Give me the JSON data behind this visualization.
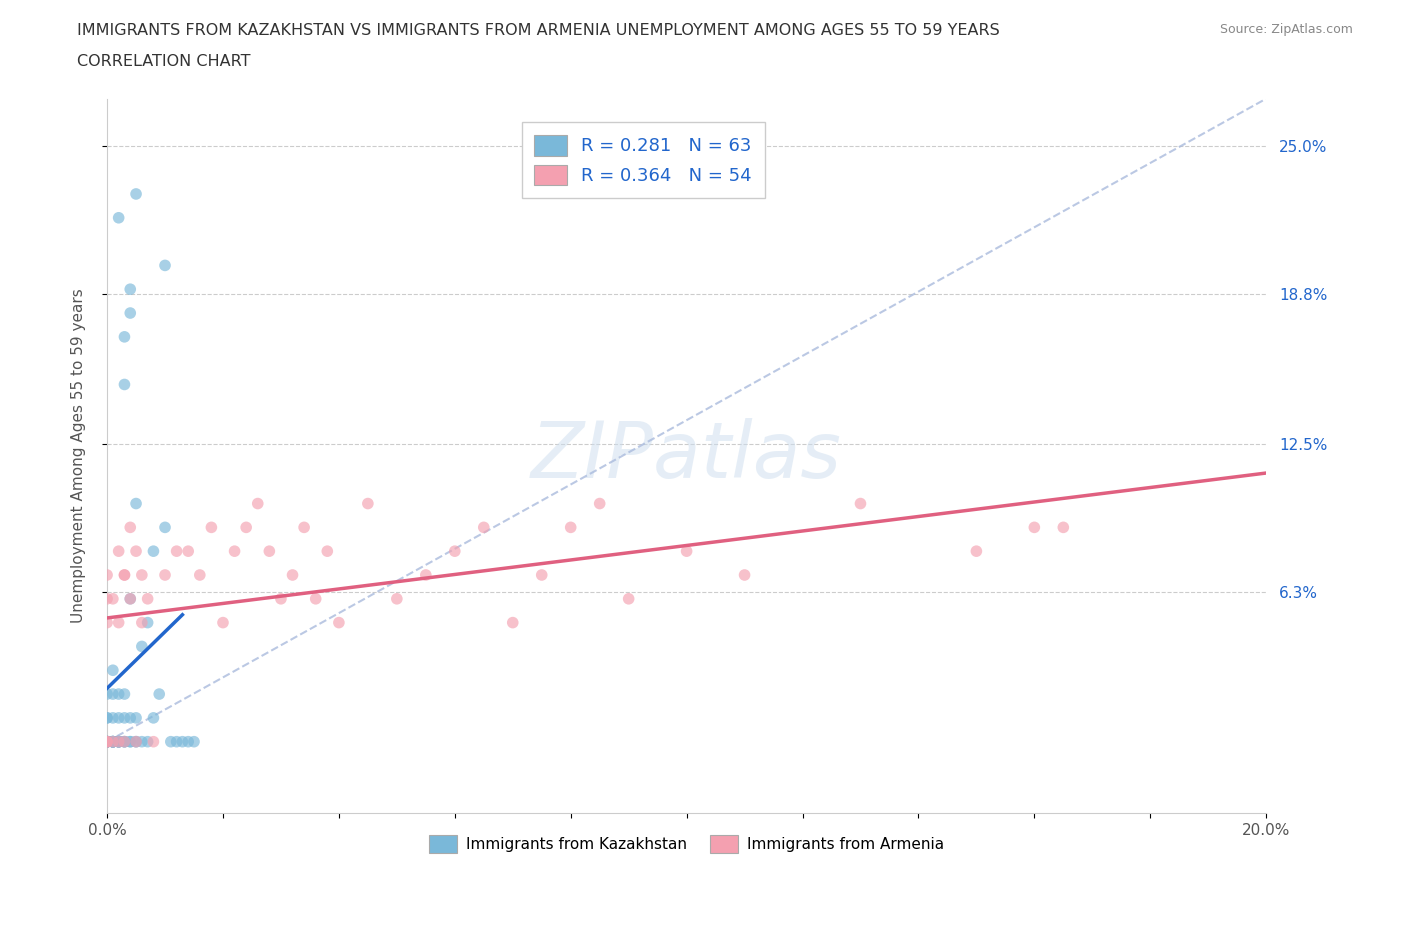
{
  "title_line1": "IMMIGRANTS FROM KAZAKHSTAN VS IMMIGRANTS FROM ARMENIA UNEMPLOYMENT AMONG AGES 55 TO 59 YEARS",
  "title_line2": "CORRELATION CHART",
  "source_text": "Source: ZipAtlas.com",
  "ylabel": "Unemployment Among Ages 55 to 59 years",
  "xlim": [
    0.0,
    0.2
  ],
  "ylim": [
    -0.03,
    0.27
  ],
  "xtick_positions": [
    0.0,
    0.02,
    0.04,
    0.06,
    0.08,
    0.1,
    0.12,
    0.14,
    0.16,
    0.18,
    0.2
  ],
  "xtick_labels": [
    "0.0%",
    "",
    "",
    "",
    "",
    "",
    "",
    "",
    "",
    "",
    "20.0%"
  ],
  "right_ytick_labels": [
    "6.3%",
    "12.5%",
    "18.8%",
    "25.0%"
  ],
  "right_ytick_vals": [
    0.063,
    0.125,
    0.188,
    0.25
  ],
  "kazakhstan_color": "#7ab8d9",
  "armenia_color": "#f4a0b0",
  "kazakhstan_line_color": "#2266cc",
  "armenia_line_color": "#e06080",
  "diag_color": "#aabbdd",
  "kazakhstan_R": 0.281,
  "kazakhstan_N": 63,
  "armenia_R": 0.364,
  "armenia_N": 54,
  "watermark_text": "ZIPatlas",
  "kaz_x": [
    0.0,
    0.0,
    0.0,
    0.0,
    0.0,
    0.0,
    0.0,
    0.0,
    0.0,
    0.0,
    0.001,
    0.001,
    0.001,
    0.001,
    0.001,
    0.001,
    0.002,
    0.002,
    0.002,
    0.002,
    0.003,
    0.003,
    0.003,
    0.004,
    0.004,
    0.004,
    0.005,
    0.005,
    0.005,
    0.006,
    0.006,
    0.007,
    0.007,
    0.008,
    0.008,
    0.009,
    0.01,
    0.01,
    0.011,
    0.012,
    0.013,
    0.014,
    0.015,
    0.002,
    0.003,
    0.004,
    0.005,
    0.003,
    0.004,
    0.001,
    0.002,
    0.003,
    0.004,
    0.005,
    0.0,
    0.001,
    0.001,
    0.002,
    0.001,
    0.002,
    0.003,
    0.002,
    0.001
  ],
  "kaz_y": [
    0.0,
    0.0,
    0.0,
    0.0,
    0.0,
    0.0,
    0.0,
    0.01,
    0.01,
    0.02,
    0.0,
    0.0,
    0.0,
    0.01,
    0.02,
    0.03,
    0.0,
    0.0,
    0.01,
    0.02,
    0.0,
    0.01,
    0.02,
    0.0,
    0.01,
    0.06,
    0.0,
    0.01,
    0.1,
    0.0,
    0.04,
    0.0,
    0.05,
    0.01,
    0.08,
    0.02,
    0.2,
    0.09,
    0.0,
    0.0,
    0.0,
    0.0,
    0.0,
    0.22,
    0.17,
    0.18,
    0.23,
    0.15,
    0.19,
    0.0,
    0.0,
    0.0,
    0.0,
    0.0,
    0.0,
    0.0,
    0.0,
    0.0,
    0.0,
    0.0,
    0.0,
    0.0,
    0.0
  ],
  "arm_x": [
    0.0,
    0.0,
    0.0,
    0.0,
    0.0,
    0.0,
    0.001,
    0.001,
    0.002,
    0.002,
    0.003,
    0.003,
    0.004,
    0.005,
    0.006,
    0.006,
    0.007,
    0.008,
    0.01,
    0.012,
    0.014,
    0.016,
    0.018,
    0.02,
    0.022,
    0.024,
    0.026,
    0.028,
    0.03,
    0.032,
    0.034,
    0.036,
    0.038,
    0.04,
    0.045,
    0.05,
    0.055,
    0.06,
    0.065,
    0.07,
    0.075,
    0.08,
    0.085,
    0.09,
    0.1,
    0.11,
    0.13,
    0.15,
    0.16,
    0.165,
    0.002,
    0.003,
    0.004,
    0.005
  ],
  "arm_y": [
    0.0,
    0.0,
    0.0,
    0.05,
    0.06,
    0.07,
    0.0,
    0.06,
    0.0,
    0.05,
    0.0,
    0.07,
    0.06,
    0.0,
    0.05,
    0.07,
    0.06,
    0.0,
    0.07,
    0.08,
    0.08,
    0.07,
    0.09,
    0.05,
    0.08,
    0.09,
    0.1,
    0.08,
    0.06,
    0.07,
    0.09,
    0.06,
    0.08,
    0.05,
    0.1,
    0.06,
    0.07,
    0.08,
    0.09,
    0.05,
    0.07,
    0.09,
    0.1,
    0.06,
    0.08,
    0.07,
    0.1,
    0.08,
    0.09,
    0.09,
    0.08,
    0.07,
    0.09,
    0.08
  ]
}
